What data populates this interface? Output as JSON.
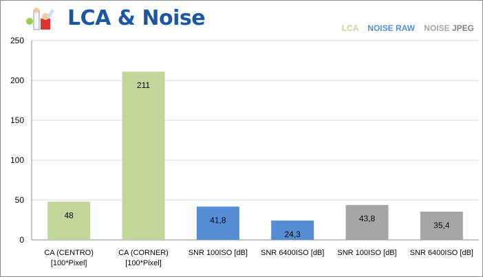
{
  "title": "LCA & Noise",
  "legend": [
    {
      "label": "LCA",
      "color": "#c3d69b"
    },
    {
      "label": "NOISE RAW",
      "color": "#558ed5"
    },
    {
      "label": "NOISE",
      "color": "#a6a6a6"
    },
    {
      "label": "JPEG",
      "color": "#7f7f7f"
    }
  ],
  "chart_data": {
    "type": "bar",
    "title": "LCA & Noise",
    "categories": [
      [
        "CA (CENTRO)",
        "[100*Pixel]"
      ],
      [
        "CA (CORNER)",
        "[100*Pixel]"
      ],
      [
        "SNR 100ISO [dB]"
      ],
      [
        "SNR 6400ISO [dB]"
      ],
      [
        "SNR 100ISO [dB]"
      ],
      [
        "SNR 6400ISO [dB]"
      ]
    ],
    "values": [
      48,
      211,
      41.8,
      24.3,
      43.8,
      35.4
    ],
    "labels": [
      "48",
      "211",
      "41,8",
      "24,3",
      "43,8",
      "35,4"
    ],
    "groups": [
      "LCA",
      "LCA",
      "NOISE RAW",
      "NOISE RAW",
      "NOISE JPEG",
      "NOISE JPEG"
    ],
    "colors": [
      "#c3d69b",
      "#c3d69b",
      "#558ed5",
      "#558ed5",
      "#a6a6a6",
      "#a6a6a6"
    ],
    "ylim": [
      0,
      250
    ],
    "yticks": [
      0,
      50,
      100,
      150,
      200,
      250
    ],
    "grid": true,
    "legend_position": "top-right"
  }
}
